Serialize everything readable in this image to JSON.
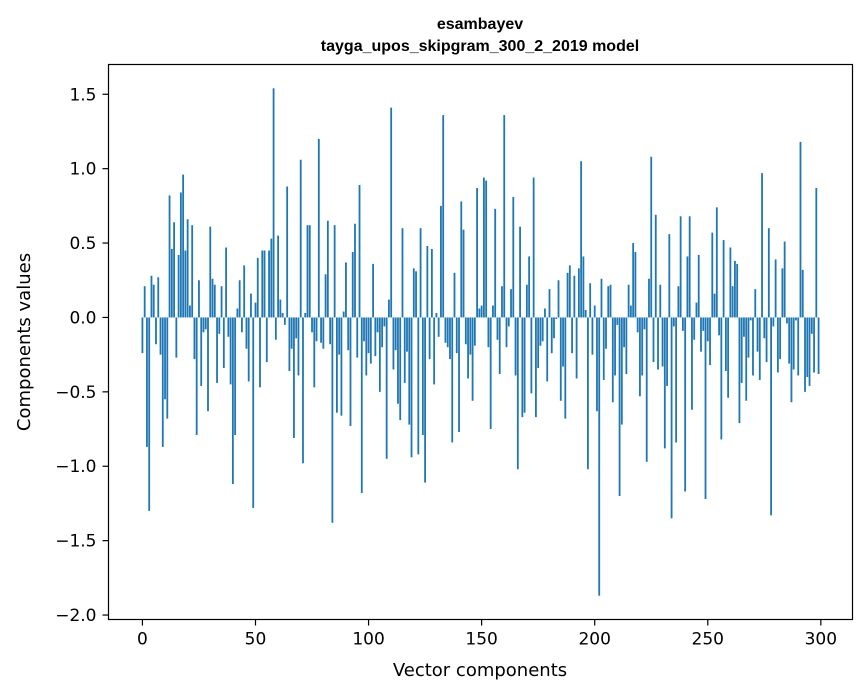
{
  "chart_data": {
    "type": "bar",
    "title_line1": "esambayev",
    "title_line2": "tayga_upos_skipgram_300_2_2019 model",
    "xlabel": "Vector components",
    "ylabel": "Components values",
    "xlim": [
      -15,
      314
    ],
    "ylim": [
      -2.03,
      1.7
    ],
    "xticks": [
      0,
      50,
      100,
      150,
      200,
      250,
      300
    ],
    "xtick_labels": [
      "0",
      "50",
      "100",
      "150",
      "200",
      "250",
      "300"
    ],
    "yticks": [
      -2.0,
      -1.5,
      -1.0,
      -0.5,
      0.0,
      0.5,
      1.0,
      1.5
    ],
    "ytick_labels": [
      "−2.0",
      "−1.5",
      "−1.0",
      "−0.5",
      "0.0",
      "0.5",
      "1.0",
      "1.5"
    ],
    "bar_color": "#1f77b4",
    "x": [
      0,
      1,
      2,
      3,
      4,
      5,
      6,
      7,
      8,
      9,
      10,
      11,
      12,
      13,
      14,
      15,
      16,
      17,
      18,
      19,
      20,
      21,
      22,
      23,
      24,
      25,
      26,
      27,
      28,
      29,
      30,
      31,
      32,
      33,
      34,
      35,
      36,
      37,
      38,
      39,
      40,
      41,
      42,
      43,
      44,
      45,
      46,
      47,
      48,
      49,
      50,
      51,
      52,
      53,
      54,
      55,
      56,
      57,
      58,
      59,
      60,
      61,
      62,
      63,
      64,
      65,
      66,
      67,
      68,
      69,
      70,
      71,
      72,
      73,
      74,
      75,
      76,
      77,
      78,
      79,
      80,
      81,
      82,
      83,
      84,
      85,
      86,
      87,
      88,
      89,
      90,
      91,
      92,
      93,
      94,
      95,
      96,
      97,
      98,
      99,
      100,
      101,
      102,
      103,
      104,
      105,
      106,
      107,
      108,
      109,
      110,
      111,
      112,
      113,
      114,
      115,
      116,
      117,
      118,
      119,
      120,
      121,
      122,
      123,
      124,
      125,
      126,
      127,
      128,
      129,
      130,
      131,
      132,
      133,
      134,
      135,
      136,
      137,
      138,
      139,
      140,
      141,
      142,
      143,
      144,
      145,
      146,
      147,
      148,
      149,
      150,
      151,
      152,
      153,
      154,
      155,
      156,
      157,
      158,
      159,
      160,
      161,
      162,
      163,
      164,
      165,
      166,
      167,
      168,
      169,
      170,
      171,
      172,
      173,
      174,
      175,
      176,
      177,
      178,
      179,
      180,
      181,
      182,
      183,
      184,
      185,
      186,
      187,
      188,
      189,
      190,
      191,
      192,
      193,
      194,
      195,
      196,
      197,
      198,
      199,
      200,
      201,
      202,
      203,
      204,
      205,
      206,
      207,
      208,
      209,
      210,
      211,
      212,
      213,
      214,
      215,
      216,
      217,
      218,
      219,
      220,
      221,
      222,
      223,
      224,
      225,
      226,
      227,
      228,
      229,
      230,
      231,
      232,
      233,
      234,
      235,
      236,
      237,
      238,
      239,
      240,
      241,
      242,
      243,
      244,
      245,
      246,
      247,
      248,
      249,
      250,
      251,
      252,
      253,
      254,
      255,
      256,
      257,
      258,
      259,
      260,
      261,
      262,
      263,
      264,
      265,
      266,
      267,
      268,
      269,
      270,
      271,
      272,
      273,
      274,
      275,
      276,
      277,
      278,
      279,
      280,
      281,
      282,
      283,
      284,
      285,
      286,
      287,
      288,
      289,
      290,
      291,
      292,
      293,
      294,
      295,
      296,
      297,
      298,
      299
    ],
    "values": [
      -0.24,
      0.21,
      -0.87,
      -1.3,
      0.28,
      0.22,
      -0.18,
      0.27,
      -0.25,
      -0.87,
      -0.55,
      -0.68,
      0.82,
      0.46,
      0.64,
      -0.27,
      0.42,
      0.84,
      0.96,
      0.45,
      0.66,
      0.08,
      0.62,
      -0.28,
      -0.79,
      0.25,
      -0.46,
      -0.1,
      -0.08,
      -0.63,
      0.61,
      0.26,
      0.22,
      -0.44,
      -0.11,
      0.21,
      -0.34,
      0.47,
      -0.13,
      -0.45,
      -1.12,
      -0.79,
      0.06,
      0.25,
      -0.1,
      0.35,
      -0.21,
      -0.43,
      0.16,
      -1.28,
      0.1,
      0.4,
      -0.47,
      0.45,
      0.45,
      -0.3,
      0.45,
      0.53,
      1.54,
      -0.15,
      0.55,
      0.12,
      0.03,
      -0.05,
      0.88,
      -0.36,
      -0.21,
      -0.81,
      -0.14,
      -0.39,
      1.06,
      -0.98,
      0.03,
      0.62,
      0.62,
      -0.1,
      -0.47,
      -0.16,
      1.2,
      -0.17,
      -0.21,
      0.29,
      0.65,
      -0.18,
      -1.38,
      0.62,
      -0.64,
      -0.25,
      -0.66,
      0.04,
      0.37,
      -0.22,
      -0.73,
      0.44,
      0.63,
      -0.27,
      0.89,
      -1.18,
      -0.16,
      -0.39,
      -0.24,
      -0.31,
      0.36,
      -0.26,
      -0.1,
      -0.5,
      -0.2,
      -0.06,
      -0.95,
      0.12,
      1.41,
      -0.35,
      -0.22,
      -0.58,
      -0.69,
      0.6,
      -0.44,
      -0.23,
      -0.72,
      -0.94,
      0.33,
      0.31,
      -0.92,
      0.6,
      -0.79,
      -1.11,
      0.48,
      -0.28,
      0.46,
      -0.45,
      0.03,
      -0.13,
      0.75,
      1.36,
      -0.17,
      -0.2,
      -0.28,
      -0.84,
      0.3,
      -0.24,
      -0.77,
      0.78,
      0.59,
      -0.18,
      -0.41,
      -0.25,
      -0.56,
      -0.19,
      0.87,
      0.06,
      0.08,
      0.94,
      0.92,
      -0.2,
      -0.75,
      0.08,
      0.73,
      -0.15,
      -0.38,
      0.21,
      1.36,
      -0.2,
      -0.06,
      0.19,
      0.81,
      -0.39,
      -1.02,
      0.61,
      -0.67,
      -0.64,
      0.22,
      0.41,
      -0.51,
      0.94,
      -0.67,
      -0.34,
      -0.19,
      -0.16,
      0.06,
      -0.43,
      0.19,
      -0.24,
      -0.14,
      -0.01,
      0.25,
      -0.56,
      -0.33,
      -0.68,
      0.3,
      0.35,
      -0.24,
      0.28,
      -0.41,
      0.33,
      1.05,
      0.41,
      0.05,
      -1.02,
      0.23,
      -0.25,
      0.08,
      -0.63,
      -1.87,
      0.26,
      -0.42,
      -0.21,
      0.21,
      0.22,
      -0.57,
      -0.39,
      -0.05,
      -1.2,
      -0.72,
      -0.2,
      -0.38,
      0.22,
      0.08,
      0.5,
      0.44,
      -0.1,
      -0.53,
      -0.39,
      -0.08,
      -0.97,
      0.26,
      1.08,
      -0.3,
      0.69,
      -0.35,
      0.22,
      -0.33,
      -0.88,
      -0.46,
      0.56,
      -1.35,
      -0.06,
      -0.84,
      0.21,
      0.68,
      -0.09,
      -1.17,
      0.41,
      0.68,
      -0.62,
      -0.15,
      0.1,
      0.42,
      -0.23,
      -0.09,
      -1.22,
      -0.16,
      -0.32,
      0.57,
      0.16,
      0.74,
      -0.12,
      -0.82,
      0.52,
      -0.36,
      -0.54,
      0.47,
      0.21,
      0.38,
      0.36,
      -0.71,
      -0.44,
      -0.13,
      -0.56,
      -0.27,
      -0.02,
      -0.39,
      0.19,
      -0.23,
      -0.42,
      0.97,
      -0.14,
      -0.3,
      0.6,
      -1.33,
      -0.06,
      0.39,
      -0.37,
      -0.28,
      0.33,
      0.51,
      -0.04,
      -0.31,
      -0.57,
      -0.35,
      -0.02,
      -0.39,
      1.18,
      0.32,
      -0.5,
      -0.4,
      -0.46,
      -0.11,
      -0.37,
      0.87,
      -0.38
    ]
  }
}
